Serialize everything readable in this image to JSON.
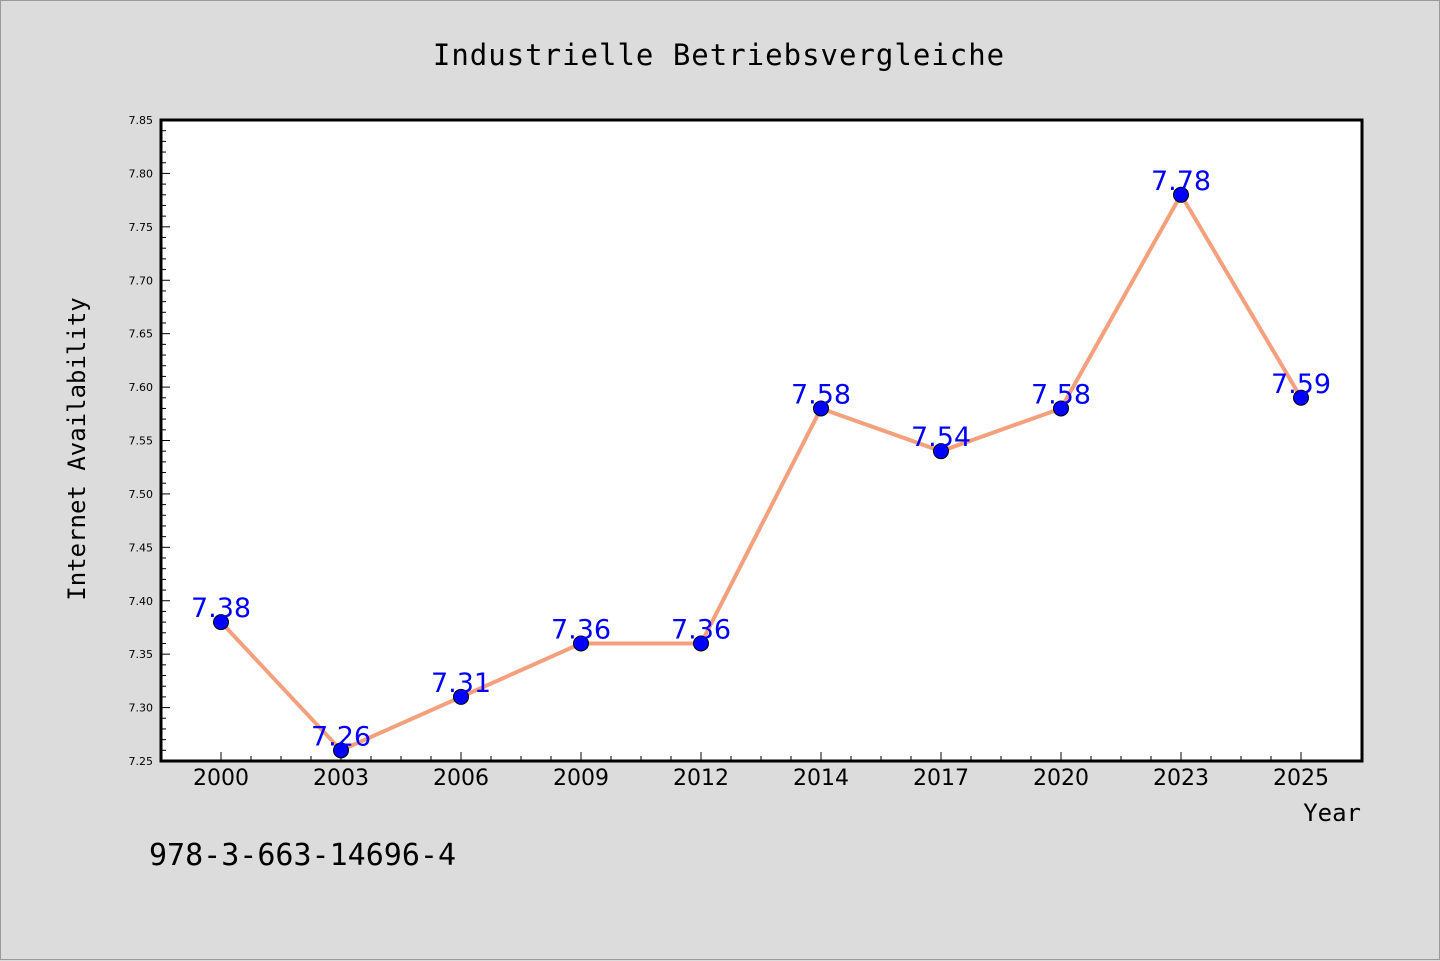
{
  "chart_data": {
    "type": "line",
    "title": "Industrielle Betriebsvergleiche",
    "xlabel": "Year",
    "ylabel": "Internet Availability",
    "categories": [
      "2000",
      "2003",
      "2006",
      "2009",
      "2012",
      "2014",
      "2017",
      "2020",
      "2023",
      "2025"
    ],
    "series": [
      {
        "values": [
          7.38,
          7.26,
          7.31,
          7.36,
          7.36,
          7.58,
          7.54,
          7.58,
          7.78,
          7.59
        ],
        "data_labels": [
          "7.38",
          "7.26",
          "7.31",
          "7.36",
          "7.36",
          "7.58",
          "7.54",
          "7.58",
          "7.78",
          "7.59"
        ],
        "line_color": "#f4a07c",
        "marker_color": "#0000ff"
      }
    ],
    "ylim": [
      7.25,
      7.85
    ],
    "y_ticks": [
      "7.25",
      "7.30",
      "7.35",
      "7.40",
      "7.45",
      "7.50",
      "7.55",
      "7.60",
      "7.65",
      "7.70",
      "7.75",
      "7.80",
      "7.85"
    ],
    "grid": false,
    "legend": "none"
  },
  "annotation": "978-3-663-14696-4",
  "colors": {
    "background": "#dcdcdc",
    "plot_background": "#ffffff",
    "label_color": "#0000ff"
  }
}
